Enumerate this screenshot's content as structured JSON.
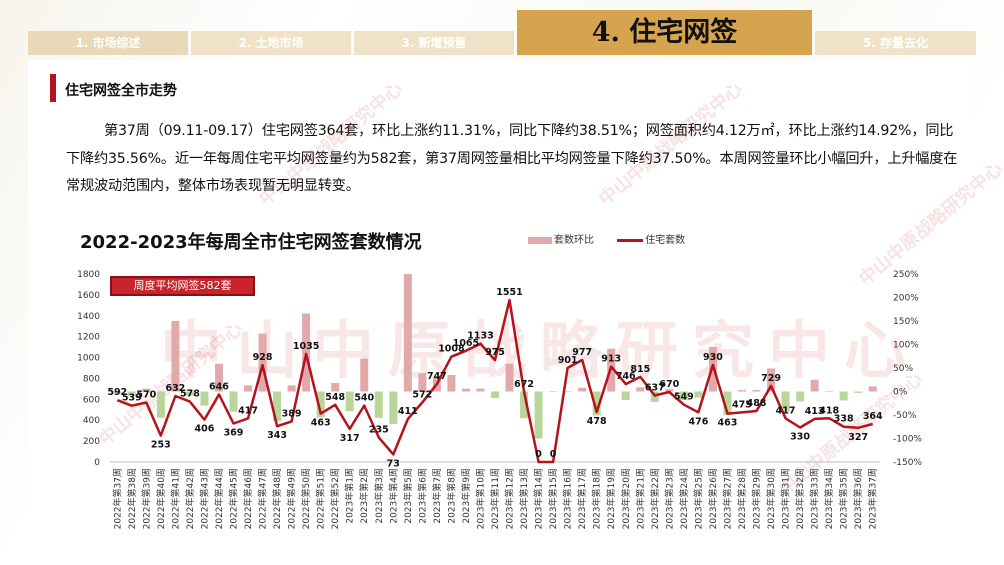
{
  "nav": {
    "tabs": [
      {
        "label": "1. 市场综述",
        "active": false
      },
      {
        "label": "2. 土地市场",
        "active": false
      },
      {
        "label": "3. 新增预售",
        "active": false
      },
      {
        "label": "4. 住宅网签",
        "active": true
      },
      {
        "label": "5. 存量去化",
        "active": false
      }
    ]
  },
  "section": {
    "title": "住宅网签全市走势",
    "summary": "第37周（09.11-09.17）住宅网签364套，环比上涨约11.31%，同比下降约38.51%；网签面积约4.12万㎡，环比上涨约14.92%，同比下降约35.56%。近一年每周住宅平均网签量约为582套，第37周网签量相比平均网签量下降约37.50%。本周网签量环比小幅回升，上升幅度在常规波动范围内，整体市场表现暂无明显转变。"
  },
  "watermark": {
    "text": "中山中原战略研究中心"
  },
  "colors": {
    "accent": "#b5121b",
    "tab_active": "#d6a44e",
    "tab_inactive": "#ead9b8",
    "bar_pos": "#e2a9ab",
    "bar_neg": "#b9d69a"
  },
  "chart_data": {
    "type": "bar+line",
    "title": "2022-2023年每周全市住宅网签套数情况",
    "avg_label": "周度平均网签582套",
    "legend": [
      "套数环比",
      "住宅套数"
    ],
    "categories": [
      "2022年第37周",
      "2022年第38周",
      "2022年第39周",
      "2022年第40周",
      "2022年第41周",
      "2022年第42周",
      "2022年第43周",
      "2022年第44周",
      "2022年第45周",
      "2022年第46周",
      "2022年第47周",
      "2022年第48周",
      "2022年第49周",
      "2022年第50周",
      "2022年第51周",
      "2022年第52周",
      "2023年第1周",
      "2023年第2周",
      "2023年第3周",
      "2023年第4周",
      "2023年第5周",
      "2023年第6周",
      "2023年第7周",
      "2023年第8周",
      "2023年第9周",
      "2023年第10周",
      "2023年第11周",
      "2023年第12周",
      "2023年第13周",
      "2023年第14周",
      "2023年第15周",
      "2023年第16周",
      "2023年第17周",
      "2023年第18周",
      "2023年第19周",
      "2023年第20周",
      "2023年第21周",
      "2023年第22周",
      "2023年第23周",
      "2023年第24周",
      "2023年第25周",
      "2023年第26周",
      "2023年第27周",
      "2023年第28周",
      "2023年第29周",
      "2023年第30周",
      "2023年第31周",
      "2023年第32周",
      "2023年第33周",
      "2023年第34周",
      "2023年第35周",
      "2023年第36周",
      "2023年第37周"
    ],
    "series": [
      {
        "name": "住宅套数",
        "axis": "left",
        "values": [
          592,
          539,
          570,
          253,
          632,
          578,
          406,
          646,
          369,
          417,
          928,
          343,
          389,
          1035,
          463,
          548,
          317,
          540,
          235,
          73,
          411,
          572,
          747,
          1008,
          1065,
          1133,
          975,
          1551,
          672,
          0,
          0,
          901,
          977,
          478,
          913,
          746,
          815,
          637,
          670,
          549,
          476,
          930,
          463,
          475,
          488,
          729,
          417,
          330,
          413,
          418,
          338,
          327,
          364
        ]
      },
      {
        "name": "套数环比",
        "axis": "right",
        "values": [
          -5,
          -9,
          6,
          -56,
          150,
          -9,
          -30,
          59,
          -43,
          13,
          123,
          -63,
          13,
          166,
          -55,
          18,
          -42,
          70,
          -56,
          -69,
          463,
          39,
          31,
          35,
          6,
          6,
          -14,
          59,
          -57,
          -100,
          0,
          0,
          8,
          -51,
          91,
          -18,
          9,
          -22,
          5,
          -18,
          -13,
          95,
          -50,
          3,
          3,
          49,
          -43,
          -21,
          25,
          1,
          -19,
          -3,
          11
        ]
      }
    ],
    "y_left": {
      "min": 0,
      "max": 1800,
      "ticks": [
        0,
        200,
        400,
        600,
        800,
        1000,
        1200,
        1400,
        1600,
        1800
      ]
    },
    "y_right": {
      "min": -150,
      "max": 250,
      "ticks": [
        "250%",
        "200%",
        "150%",
        "100%",
        "50%",
        "0%",
        "-50%",
        "-100%",
        "-150%"
      ]
    },
    "grid": false,
    "legend_position": "top"
  }
}
